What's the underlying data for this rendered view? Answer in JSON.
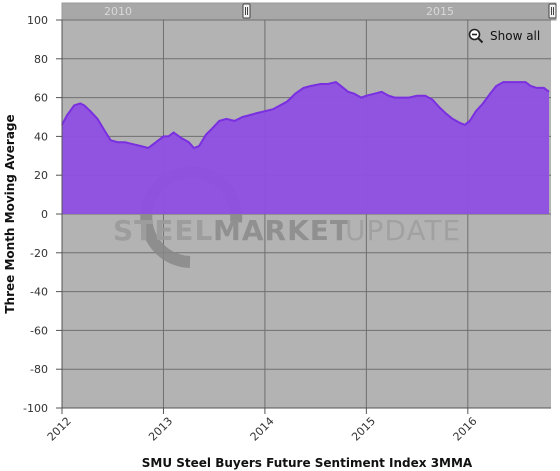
{
  "chart_data": {
    "type": "area",
    "title": "",
    "xlabel": "SMU Steel Buyers Future Sentiment Index 3MMA",
    "ylabel": "Three Month Moving Average",
    "ylim": [
      -100,
      100
    ],
    "yticks": [
      100,
      80,
      60,
      40,
      20,
      0,
      -20,
      -40,
      -60,
      -80,
      -100
    ],
    "xlim": [
      2012.0,
      2016.82
    ],
    "xticks": [
      "2012",
      "2013",
      "2014",
      "2015",
      "2016"
    ],
    "grid": true,
    "legend": "none",
    "navigator_labels": [
      "2010",
      "2015"
    ],
    "colors": {
      "plot_bg": "#b3b3b3",
      "area_fill": "#8e4fe3",
      "area_line": "#7a2fe0",
      "grid": "#6f6f6f"
    },
    "series": [
      {
        "x": [
          2012.0,
          2012.05,
          2012.12,
          2012.18,
          2012.22,
          2012.28,
          2012.35,
          2012.42,
          2012.48,
          2012.55,
          2012.62,
          2012.7,
          2012.78,
          2012.85,
          2012.9,
          2012.95,
          2013.0,
          2013.05,
          2013.1,
          2013.18,
          2013.25,
          2013.3,
          2013.35,
          2013.42,
          2013.48,
          2013.55,
          2013.62,
          2013.7,
          2013.78,
          2013.85,
          2013.92,
          2014.0,
          2014.08,
          2014.15,
          2014.22,
          2014.3,
          2014.38,
          2014.45,
          2014.55,
          2014.62,
          2014.7,
          2014.75,
          2014.82,
          2014.88,
          2014.95,
          2015.0,
          2015.08,
          2015.15,
          2015.22,
          2015.28,
          2015.35,
          2015.42,
          2015.5,
          2015.58,
          2015.65,
          2015.72,
          2015.78,
          2015.85,
          2015.92,
          2015.97,
          2016.02,
          2016.08,
          2016.15,
          2016.22,
          2016.28,
          2016.35,
          2016.42,
          2016.5,
          2016.57,
          2016.62,
          2016.68,
          2016.75,
          2016.8
        ],
        "y": [
          46,
          51,
          56,
          57,
          56,
          53,
          49,
          43,
          38,
          37,
          37,
          36,
          35,
          34,
          36,
          38,
          40,
          40,
          42,
          39,
          37,
          34,
          35,
          41,
          44,
          48,
          49,
          48,
          50,
          51,
          52,
          53,
          54,
          56,
          58,
          62,
          65,
          66,
          67,
          67,
          68,
          66,
          63,
          62,
          60,
          61,
          62,
          63,
          61,
          60,
          60,
          60,
          61,
          61,
          59,
          55,
          52,
          49,
          47,
          46,
          48,
          53,
          57,
          62,
          66,
          68,
          68,
          68,
          68,
          66,
          65,
          65,
          63
        ]
      }
    ]
  },
  "watermark": {
    "text_left": "STEEL",
    "text_mid": "MARKET",
    "text_right": "UPDATE"
  },
  "controls": {
    "show_all_label": "Show all",
    "show_all_icon": "zoom-out-icon"
  }
}
